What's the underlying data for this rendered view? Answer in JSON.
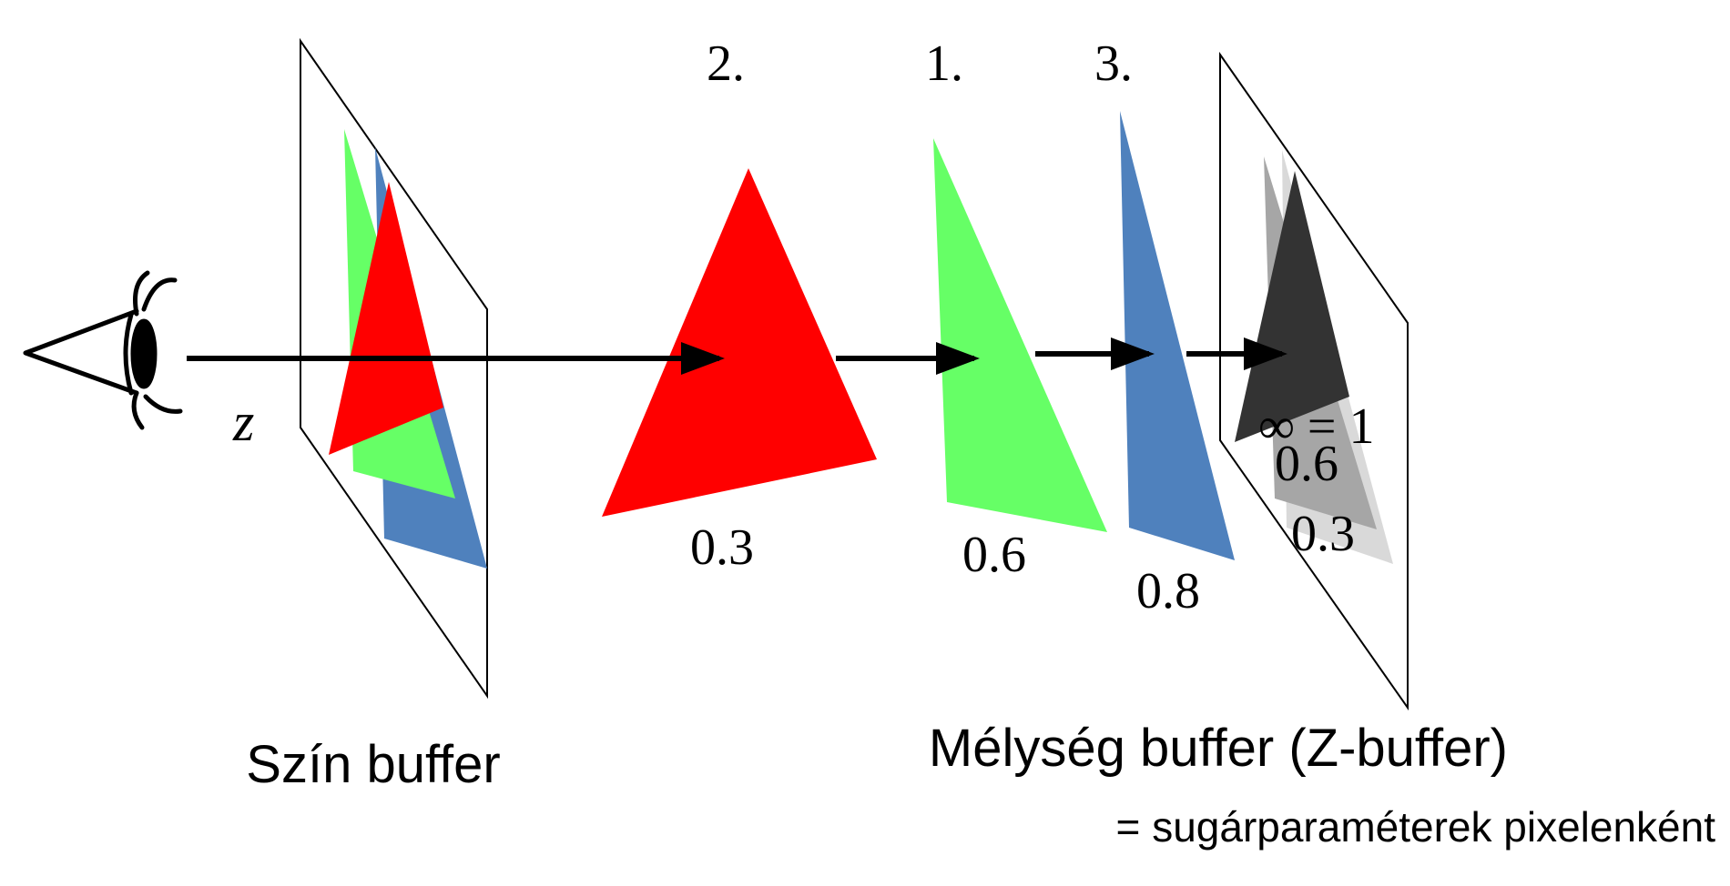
{
  "labels": {
    "z": "z",
    "order_2": "2.",
    "order_1": "1.",
    "order_3": "3.",
    "depth_red": "0.3",
    "depth_green": "0.6",
    "depth_blue": "0.8",
    "zbuf_infinity": "∞ = 1",
    "zbuf_06": "0.6",
    "zbuf_03": "0.3",
    "color_buffer": "Szín buffer",
    "depth_buffer": "Mélység buffer (Z-buffer)",
    "depth_buffer_sub": "= sugárparaméterek pixelenként"
  },
  "colors": {
    "red": "#ff0000",
    "green": "#66ff66",
    "blue": "#4f81bd",
    "dark": "#333333",
    "mid_gray": "#a6a6a6",
    "light_gray": "#d9d9d9"
  }
}
